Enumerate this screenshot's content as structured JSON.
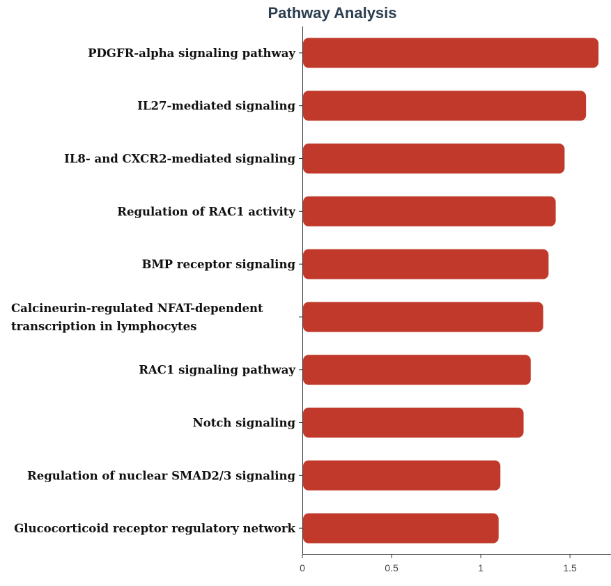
{
  "chart_data": {
    "type": "bar",
    "orientation": "horizontal",
    "title": "Pathway Analysis",
    "xlabel": "",
    "ylabel": "",
    "categories": [
      [
        "PDGFR-alpha signaling pathway"
      ],
      [
        "IL27-mediated signaling"
      ],
      [
        "IL8- and CXCR2-mediated signaling"
      ],
      [
        "Regulation of RAC1 activity"
      ],
      [
        "BMP receptor signaling"
      ],
      [
        "Calcineurin-regulated NFAT-dependent",
        "transcription in lymphocytes"
      ],
      [
        "RAC1 signaling pathway"
      ],
      [
        "Notch signaling"
      ],
      [
        "Regulation of nuclear SMAD2/3 signaling"
      ],
      [
        "Glucocorticoid receptor regulatory network"
      ]
    ],
    "values": [
      1.66,
      1.59,
      1.47,
      1.42,
      1.38,
      1.35,
      1.28,
      1.24,
      1.11,
      1.1
    ],
    "xlim": [
      0,
      1.73
    ],
    "xticks": [
      0,
      0.5,
      1,
      1.5
    ],
    "xtick_labels": [
      "0",
      "0.5",
      "1",
      "1.5"
    ],
    "bar_color": "#c0392b",
    "grid": false,
    "legend": "none"
  }
}
